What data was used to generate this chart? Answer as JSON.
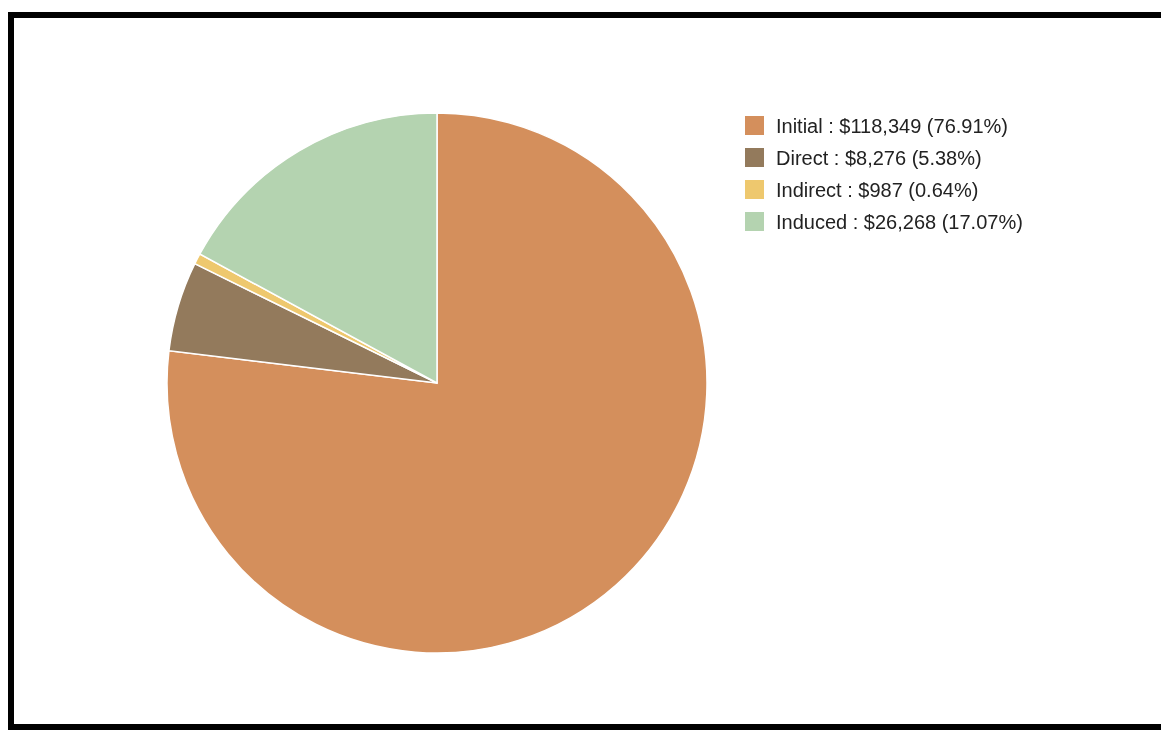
{
  "chart_data": {
    "type": "pie",
    "categories": [
      "Initial : $118,349 (76.91%)",
      "Direct : $8,276 (5.38%)",
      "Indirect : $987 (0.64%)",
      "Induced : $26,268 (17.07%)"
    ],
    "values": [
      118349,
      8276,
      987,
      26268
    ],
    "colors": [
      "#d48f5c",
      "#937a5c",
      "#eec86e",
      "#b4d3b0"
    ],
    "legend": "top right"
  }
}
